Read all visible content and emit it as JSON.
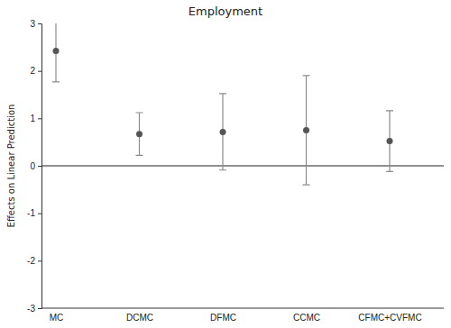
{
  "chart_data": {
    "type": "errorbar",
    "title": "Employment",
    "y_label": "Effects on Linear Prediction",
    "categories": [
      "MC",
      "DCMC",
      "DFMC",
      "CCMC",
      "CFMC+CVFMC"
    ],
    "values": [
      2.42,
      0.67,
      0.71,
      0.75,
      0.52
    ],
    "ci_low": [
      1.77,
      0.22,
      -0.09,
      -0.4,
      -0.12
    ],
    "ci_high": [
      3.08,
      1.12,
      1.52,
      1.9,
      1.16
    ],
    "reference_line": 0,
    "color": "#555555",
    "ylim": [
      -3,
      3
    ],
    "yticks": [
      -3,
      -2,
      -1,
      0,
      1,
      2,
      3
    ],
    "grid": false
  }
}
